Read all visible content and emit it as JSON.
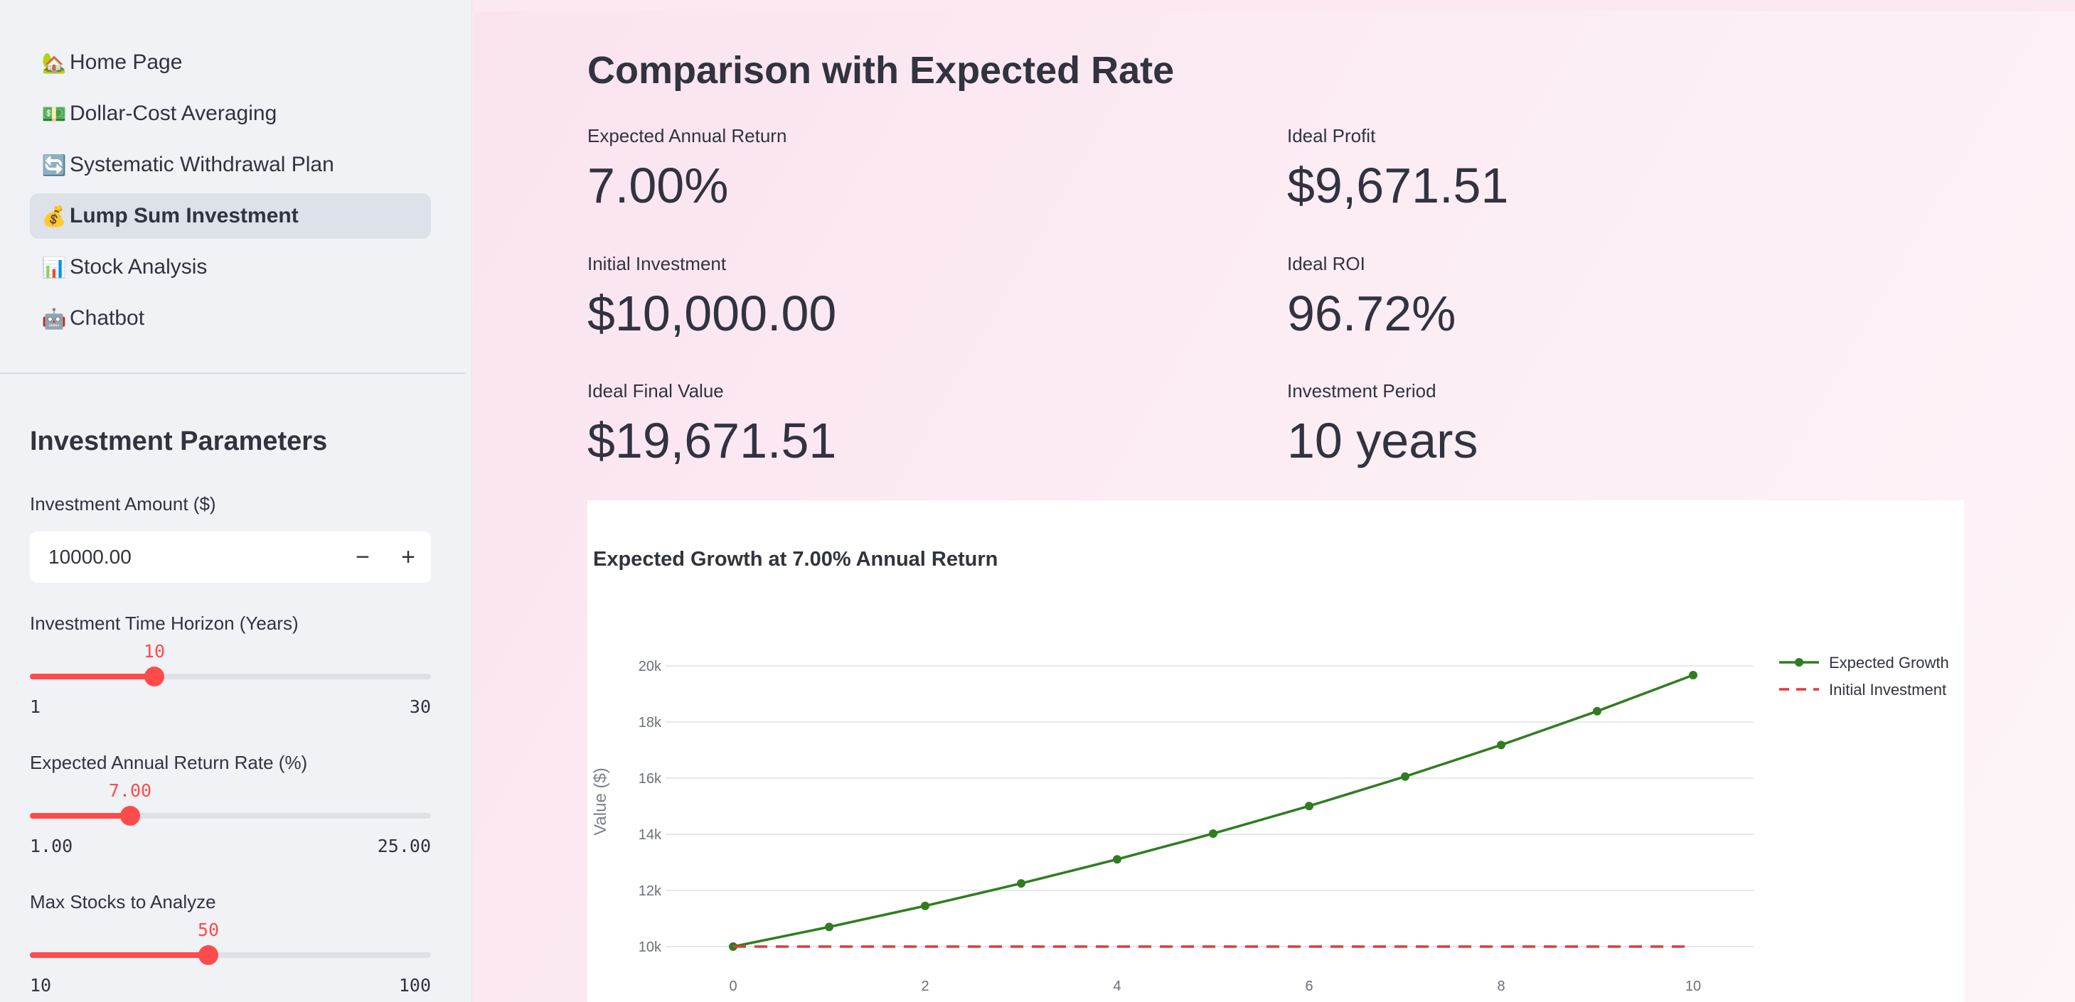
{
  "sidebar": {
    "nav": [
      {
        "icon": "🏡",
        "icon_name": "house-icon",
        "label": "Home Page",
        "active": false
      },
      {
        "icon": "💵",
        "icon_name": "dollar-bill-icon",
        "label": "Dollar-Cost Averaging",
        "active": false
      },
      {
        "icon": "🔄",
        "icon_name": "cycle-arrows-icon",
        "label": "Systematic Withdrawal Plan",
        "active": false
      },
      {
        "icon": "💰",
        "icon_name": "money-bag-icon",
        "label": "Lump Sum Investment",
        "active": true
      },
      {
        "icon": "📊",
        "icon_name": "bar-chart-icon",
        "label": "Stock Analysis",
        "active": false
      },
      {
        "icon": "🤖",
        "icon_name": "robot-icon",
        "label": "Chatbot",
        "active": false
      }
    ],
    "params_title": "Investment Parameters",
    "amount": {
      "label": "Investment Amount ($)",
      "value": "10000.00",
      "minus": "−",
      "plus": "+"
    },
    "sliders": [
      {
        "label": "Investment Time Horizon (Years)",
        "value": "10",
        "min": "1",
        "max": "30",
        "fraction": 0.3103
      },
      {
        "label": "Expected Annual Return Rate (%)",
        "value": "7.00",
        "min": "1.00",
        "max": "25.00",
        "fraction": 0.25
      },
      {
        "label": "Max Stocks to Analyze",
        "value": "50",
        "min": "10",
        "max": "100",
        "fraction": 0.4444
      }
    ]
  },
  "main": {
    "title": "Comparison with Expected Rate",
    "metrics": {
      "left": [
        {
          "label": "Expected Annual Return",
          "value": "7.00%"
        },
        {
          "label": "Initial Investment",
          "value": "$10,000.00"
        },
        {
          "label": "Ideal Final Value",
          "value": "$19,671.51"
        }
      ],
      "right": [
        {
          "label": "Ideal Profit",
          "value": "$9,671.51"
        },
        {
          "label": "Ideal ROI",
          "value": "96.72%"
        },
        {
          "label": "Investment Period",
          "value": "10 years"
        }
      ]
    }
  },
  "colors": {
    "accent": "#ff4b4b",
    "growth_line": "#2f7d1f",
    "baseline_line": "#e53935"
  },
  "chart_data": {
    "type": "line",
    "title": "Expected Growth at 7.00% Annual Return",
    "xlabel": "",
    "ylabel": "Value ($)",
    "x": [
      0,
      1,
      2,
      3,
      4,
      5,
      6,
      7,
      8,
      9,
      10
    ],
    "xticks": [
      0,
      2,
      4,
      6,
      8,
      10
    ],
    "yticks": [
      10000,
      12000,
      14000,
      16000,
      18000,
      20000
    ],
    "ytick_labels": [
      "10k",
      "12k",
      "14k",
      "16k",
      "18k",
      "20k"
    ],
    "xlim": [
      0,
      10
    ],
    "ylim": [
      10000,
      20000
    ],
    "grid": true,
    "legend": "top-right",
    "series": [
      {
        "name": "Expected Growth",
        "style": "solid-markers",
        "values": [
          10000,
          10700,
          11449,
          12250.43,
          13107.96,
          14025.52,
          15007.3,
          16057.81,
          17181.86,
          18384.59,
          19671.51
        ]
      },
      {
        "name": "Initial Investment",
        "style": "dashed",
        "values": [
          10000,
          10000,
          10000,
          10000,
          10000,
          10000,
          10000,
          10000,
          10000,
          10000,
          10000
        ]
      }
    ]
  }
}
